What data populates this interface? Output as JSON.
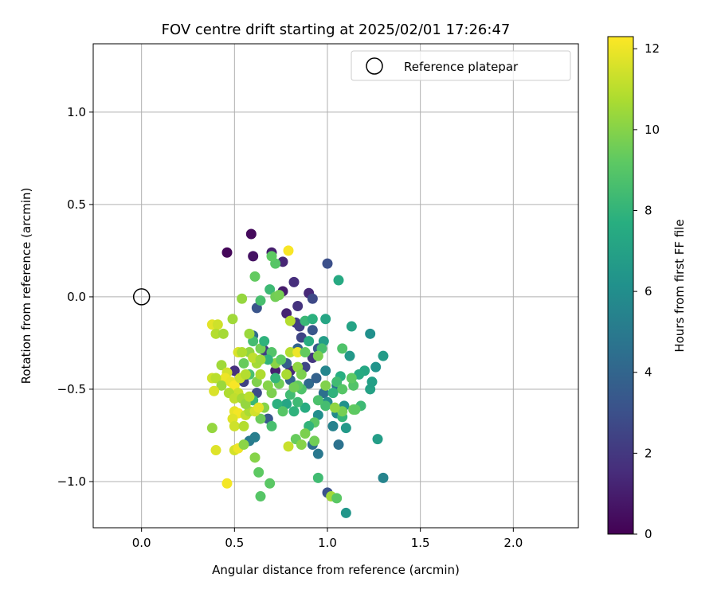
{
  "chart_data": {
    "type": "scatter",
    "title": "FOV centre drift starting at 2025/02/01 17:26:47",
    "xlabel": "Angular distance from reference (arcmin)",
    "ylabel": "Rotation from reference (arcmin)",
    "xlim": [
      -0.26,
      2.35
    ],
    "ylim": [
      -1.25,
      1.37
    ],
    "xticks": [
      0.0,
      0.5,
      1.0,
      1.5,
      2.0
    ],
    "xtick_labels": [
      "0.0",
      "0.5",
      "1.0",
      "1.5",
      "2.0"
    ],
    "yticks": [
      -1.0,
      -0.5,
      0.0,
      0.5,
      1.0
    ],
    "ytick_labels": [
      "−1.0",
      "−0.5",
      "0.0",
      "0.5",
      "1.0"
    ],
    "grid": true,
    "legend": {
      "label": "Reference platepar",
      "location": "upper right"
    },
    "reference_point": {
      "x": 0.0,
      "y": 0.0
    },
    "colorbar": {
      "label": "Hours from first FF file",
      "colormap": "viridis",
      "range": [
        0,
        12.3
      ],
      "ticks": [
        0,
        2,
        4,
        6,
        8,
        10,
        12
      ],
      "tick_labels": [
        "0",
        "2",
        "4",
        "6",
        "8",
        "10",
        "12"
      ]
    },
    "points": [
      {
        "x": 0.46,
        "y": 0.24,
        "h": 0.2
      },
      {
        "x": 0.59,
        "y": 0.34,
        "h": 0.3
      },
      {
        "x": 0.6,
        "y": 0.22,
        "h": 0.6
      },
      {
        "x": 0.7,
        "y": 0.24,
        "h": 1.0
      },
      {
        "x": 0.76,
        "y": 0.19,
        "h": 1.3
      },
      {
        "x": 0.82,
        "y": 0.08,
        "h": 1.6
      },
      {
        "x": 0.76,
        "y": 0.03,
        "h": 0.9
      },
      {
        "x": 0.84,
        "y": -0.05,
        "h": 1.8
      },
      {
        "x": 0.78,
        "y": -0.09,
        "h": 1.2
      },
      {
        "x": 0.9,
        "y": 0.02,
        "h": 1.4
      },
      {
        "x": 0.92,
        "y": -0.01,
        "h": 2.7
      },
      {
        "x": 1.0,
        "y": 0.18,
        "h": 3.0
      },
      {
        "x": 0.83,
        "y": -0.14,
        "h": 2.1
      },
      {
        "x": 0.85,
        "y": -0.16,
        "h": 2.3
      },
      {
        "x": 0.92,
        "y": -0.18,
        "h": 3.3
      },
      {
        "x": 0.86,
        "y": -0.22,
        "h": 2.5
      },
      {
        "x": 0.95,
        "y": -0.28,
        "h": 3.5
      },
      {
        "x": 0.92,
        "y": -0.33,
        "h": 1.9
      },
      {
        "x": 0.88,
        "y": -0.38,
        "h": 2.6
      },
      {
        "x": 0.8,
        "y": -0.4,
        "h": 1.5
      },
      {
        "x": 0.72,
        "y": -0.4,
        "h": 1.1
      },
      {
        "x": 0.78,
        "y": -0.36,
        "h": 3.6
      },
      {
        "x": 0.84,
        "y": -0.28,
        "h": 4.0
      },
      {
        "x": 0.8,
        "y": -0.45,
        "h": 3.9
      },
      {
        "x": 0.9,
        "y": -0.47,
        "h": 4.2
      },
      {
        "x": 0.94,
        "y": -0.44,
        "h": 3.8
      },
      {
        "x": 0.99,
        "y": -0.4,
        "h": 5.6
      },
      {
        "x": 0.98,
        "y": -0.52,
        "h": 4.5
      },
      {
        "x": 1.05,
        "y": -0.48,
        "h": 4.7
      },
      {
        "x": 0.62,
        "y": -0.06,
        "h": 3.2
      },
      {
        "x": 0.6,
        "y": -0.21,
        "h": 4.3
      },
      {
        "x": 0.66,
        "y": -0.29,
        "h": 2.2
      },
      {
        "x": 0.5,
        "y": -0.4,
        "h": 1.7
      },
      {
        "x": 0.55,
        "y": -0.46,
        "h": 2.4
      },
      {
        "x": 0.62,
        "y": -0.52,
        "h": 2.8
      },
      {
        "x": 0.68,
        "y": -0.66,
        "h": 3.4
      },
      {
        "x": 0.58,
        "y": -0.78,
        "h": 5.0
      },
      {
        "x": 0.61,
        "y": -0.76,
        "h": 5.2
      },
      {
        "x": 1.0,
        "y": -1.06,
        "h": 3.1
      },
      {
        "x": 1.06,
        "y": -0.8,
        "h": 4.6
      },
      {
        "x": 0.92,
        "y": -0.8,
        "h": 4.4
      },
      {
        "x": 0.95,
        "y": -0.85,
        "h": 4.9
      },
      {
        "x": 1.03,
        "y": -0.7,
        "h": 5.4
      },
      {
        "x": 1.05,
        "y": -0.63,
        "h": 5.8
      },
      {
        "x": 0.95,
        "y": -0.64,
        "h": 6.0
      },
      {
        "x": 1.0,
        "y": -0.57,
        "h": 5.9
      },
      {
        "x": 1.09,
        "y": -0.59,
        "h": 6.2
      },
      {
        "x": 1.1,
        "y": -0.71,
        "h": 6.6
      },
      {
        "x": 1.1,
        "y": -1.17,
        "h": 6.4
      },
      {
        "x": 1.27,
        "y": -0.77,
        "h": 6.8
      },
      {
        "x": 1.3,
        "y": -0.98,
        "h": 5.5
      },
      {
        "x": 1.3,
        "y": -0.32,
        "h": 6.7
      },
      {
        "x": 1.26,
        "y": -0.38,
        "h": 6.3
      },
      {
        "x": 1.23,
        "y": -0.5,
        "h": 7.0
      },
      {
        "x": 1.24,
        "y": -0.46,
        "h": 6.9
      },
      {
        "x": 1.2,
        "y": -0.4,
        "h": 7.3
      },
      {
        "x": 1.23,
        "y": -0.2,
        "h": 6.1
      },
      {
        "x": 1.12,
        "y": -0.32,
        "h": 6.5
      },
      {
        "x": 1.13,
        "y": -0.16,
        "h": 7.1
      },
      {
        "x": 1.06,
        "y": 0.09,
        "h": 7.4
      },
      {
        "x": 0.99,
        "y": -0.12,
        "h": 7.2
      },
      {
        "x": 0.98,
        "y": -0.24,
        "h": 6.8
      },
      {
        "x": 0.88,
        "y": -0.13,
        "h": 8.2
      },
      {
        "x": 0.9,
        "y": -0.24,
        "h": 7.6
      },
      {
        "x": 0.92,
        "y": -0.12,
        "h": 7.8
      },
      {
        "x": 0.97,
        "y": -0.28,
        "h": 8.6
      },
      {
        "x": 1.08,
        "y": -0.28,
        "h": 8.8
      },
      {
        "x": 1.07,
        "y": -0.43,
        "h": 7.7
      },
      {
        "x": 1.05,
        "y": -0.46,
        "h": 8.4
      },
      {
        "x": 1.08,
        "y": -0.5,
        "h": 9.0
      },
      {
        "x": 1.14,
        "y": -0.48,
        "h": 8.9
      },
      {
        "x": 1.17,
        "y": -0.42,
        "h": 7.5
      },
      {
        "x": 1.13,
        "y": -0.44,
        "h": 9.2
      },
      {
        "x": 1.18,
        "y": -0.59,
        "h": 8.3
      },
      {
        "x": 1.14,
        "y": -0.61,
        "h": 9.4
      },
      {
        "x": 1.08,
        "y": -0.65,
        "h": 8.1
      },
      {
        "x": 1.03,
        "y": -0.52,
        "h": 7.9
      },
      {
        "x": 0.99,
        "y": -0.59,
        "h": 8.5
      },
      {
        "x": 0.95,
        "y": -0.56,
        "h": 8.7
      },
      {
        "x": 0.93,
        "y": -0.68,
        "h": 9.1
      },
      {
        "x": 0.9,
        "y": -0.7,
        "h": 8.0
      },
      {
        "x": 0.88,
        "y": -0.6,
        "h": 7.6
      },
      {
        "x": 0.84,
        "y": -0.57,
        "h": 8.3
      },
      {
        "x": 0.82,
        "y": -0.62,
        "h": 7.9
      },
      {
        "x": 0.86,
        "y": -0.5,
        "h": 8.8
      },
      {
        "x": 0.84,
        "y": -0.48,
        "h": 9.3
      },
      {
        "x": 0.8,
        "y": -0.53,
        "h": 8.4
      },
      {
        "x": 0.78,
        "y": -0.58,
        "h": 7.2
      },
      {
        "x": 0.74,
        "y": -0.47,
        "h": 9.6
      },
      {
        "x": 0.72,
        "y": -0.44,
        "h": 8.1
      },
      {
        "x": 0.7,
        "y": -0.52,
        "h": 9.8
      },
      {
        "x": 0.73,
        "y": -0.58,
        "h": 7.8
      },
      {
        "x": 0.76,
        "y": -0.62,
        "h": 9.0
      },
      {
        "x": 0.7,
        "y": -0.7,
        "h": 8.6
      },
      {
        "x": 0.64,
        "y": -0.66,
        "h": 9.5
      },
      {
        "x": 0.66,
        "y": -0.6,
        "h": 10.0
      },
      {
        "x": 0.6,
        "y": -0.56,
        "h": 8.2
      },
      {
        "x": 0.62,
        "y": -0.46,
        "h": 9.9
      },
      {
        "x": 0.58,
        "y": -0.42,
        "h": 8.7
      },
      {
        "x": 0.55,
        "y": -0.36,
        "h": 9.4
      },
      {
        "x": 0.58,
        "y": -0.3,
        "h": 10.2
      },
      {
        "x": 0.6,
        "y": -0.24,
        "h": 8.5
      },
      {
        "x": 0.64,
        "y": -0.28,
        "h": 9.7
      },
      {
        "x": 0.66,
        "y": -0.24,
        "h": 7.9
      },
      {
        "x": 0.7,
        "y": -0.3,
        "h": 8.9
      },
      {
        "x": 0.72,
        "y": -0.36,
        "h": 10.1
      },
      {
        "x": 0.75,
        "y": -0.34,
        "h": 9.2
      },
      {
        "x": 0.68,
        "y": -0.34,
        "h": 8.0
      },
      {
        "x": 0.69,
        "y": 0.04,
        "h": 8.3
      },
      {
        "x": 0.72,
        "y": 0.0,
        "h": 9.6
      },
      {
        "x": 0.72,
        "y": 0.18,
        "h": 9.0
      },
      {
        "x": 0.61,
        "y": 0.11,
        "h": 9.3
      },
      {
        "x": 0.64,
        "y": -0.02,
        "h": 8.6
      },
      {
        "x": 0.54,
        "y": -0.01,
        "h": 10.3
      },
      {
        "x": 0.49,
        "y": -0.12,
        "h": 10.5
      },
      {
        "x": 0.58,
        "y": -0.2,
        "h": 10.4
      },
      {
        "x": 0.62,
        "y": -0.36,
        "h": 10.6
      },
      {
        "x": 0.64,
        "y": -0.42,
        "h": 10.8
      },
      {
        "x": 0.68,
        "y": -0.48,
        "h": 10.0
      },
      {
        "x": 0.78,
        "y": -0.42,
        "h": 10.7
      },
      {
        "x": 0.8,
        "y": -0.3,
        "h": 10.9
      },
      {
        "x": 0.84,
        "y": -0.38,
        "h": 10.2
      },
      {
        "x": 0.86,
        "y": -0.42,
        "h": 9.8
      },
      {
        "x": 0.8,
        "y": -0.13,
        "h": 10.9
      },
      {
        "x": 0.79,
        "y": 0.25,
        "h": 12.2
      },
      {
        "x": 0.84,
        "y": -0.3,
        "h": 12.0
      },
      {
        "x": 0.38,
        "y": -0.15,
        "h": 11.8
      },
      {
        "x": 0.41,
        "y": -0.15,
        "h": 11.4
      },
      {
        "x": 0.4,
        "y": -0.2,
        "h": 10.9
      },
      {
        "x": 0.44,
        "y": -0.2,
        "h": 10.6
      },
      {
        "x": 0.43,
        "y": -0.37,
        "h": 10.5
      },
      {
        "x": 0.46,
        "y": -0.41,
        "h": 11.5
      },
      {
        "x": 0.45,
        "y": -0.44,
        "h": 12.0
      },
      {
        "x": 0.38,
        "y": -0.44,
        "h": 11.4
      },
      {
        "x": 0.4,
        "y": -0.44,
        "h": 11.0
      },
      {
        "x": 0.43,
        "y": -0.48,
        "h": 10.4
      },
      {
        "x": 0.39,
        "y": -0.51,
        "h": 11.6
      },
      {
        "x": 0.48,
        "y": -0.46,
        "h": 11.9
      },
      {
        "x": 0.5,
        "y": -0.48,
        "h": 12.2
      },
      {
        "x": 0.52,
        "y": -0.52,
        "h": 11.3
      },
      {
        "x": 0.47,
        "y": -0.52,
        "h": 10.8
      },
      {
        "x": 0.5,
        "y": -0.55,
        "h": 11.1
      },
      {
        "x": 0.54,
        "y": -0.55,
        "h": 10.6
      },
      {
        "x": 0.5,
        "y": -0.62,
        "h": 11.9
      },
      {
        "x": 0.52,
        "y": -0.63,
        "h": 12.1
      },
      {
        "x": 0.49,
        "y": -0.66,
        "h": 11.7
      },
      {
        "x": 0.5,
        "y": -0.7,
        "h": 11.4
      },
      {
        "x": 0.55,
        "y": -0.7,
        "h": 10.9
      },
      {
        "x": 0.56,
        "y": -0.64,
        "h": 11.2
      },
      {
        "x": 0.58,
        "y": -0.62,
        "h": 10.7
      },
      {
        "x": 0.61,
        "y": -0.62,
        "h": 11.5
      },
      {
        "x": 0.63,
        "y": -0.6,
        "h": 11.8
      },
      {
        "x": 0.56,
        "y": -0.58,
        "h": 10.3
      },
      {
        "x": 0.58,
        "y": -0.54,
        "h": 11.0
      },
      {
        "x": 0.53,
        "y": -0.44,
        "h": 11.3
      },
      {
        "x": 0.56,
        "y": -0.42,
        "h": 10.9
      },
      {
        "x": 0.52,
        "y": -0.3,
        "h": 11.6
      },
      {
        "x": 0.54,
        "y": -0.3,
        "h": 10.8
      },
      {
        "x": 0.6,
        "y": -0.33,
        "h": 11.1
      },
      {
        "x": 0.64,
        "y": -0.34,
        "h": 10.5
      },
      {
        "x": 0.38,
        "y": -0.71,
        "h": 10.3
      },
      {
        "x": 0.4,
        "y": -0.83,
        "h": 11.7
      },
      {
        "x": 0.5,
        "y": -0.83,
        "h": 11.5
      },
      {
        "x": 0.52,
        "y": -0.82,
        "h": 12.0
      },
      {
        "x": 0.46,
        "y": -1.01,
        "h": 12.1
      },
      {
        "x": 0.55,
        "y": -0.8,
        "h": 10.1
      },
      {
        "x": 0.61,
        "y": -0.87,
        "h": 10.0
      },
      {
        "x": 0.63,
        "y": -0.95,
        "h": 9.2
      },
      {
        "x": 0.64,
        "y": -1.08,
        "h": 9.0
      },
      {
        "x": 0.69,
        "y": -1.01,
        "h": 9.1
      },
      {
        "x": 0.79,
        "y": -0.81,
        "h": 11.3
      },
      {
        "x": 0.83,
        "y": -0.77,
        "h": 9.4
      },
      {
        "x": 0.86,
        "y": -0.8,
        "h": 10.0
      },
      {
        "x": 0.88,
        "y": -0.74,
        "h": 9.8
      },
      {
        "x": 0.93,
        "y": -0.78,
        "h": 9.6
      },
      {
        "x": 0.95,
        "y": -0.98,
        "h": 8.4
      },
      {
        "x": 1.02,
        "y": -1.08,
        "h": 10.5
      },
      {
        "x": 1.05,
        "y": -1.09,
        "h": 9.1
      },
      {
        "x": 1.15,
        "y": -0.61,
        "h": 9.2
      },
      {
        "x": 1.08,
        "y": -0.62,
        "h": 9.7
      },
      {
        "x": 1.04,
        "y": -0.6,
        "h": 10.2
      },
      {
        "x": 0.99,
        "y": -0.48,
        "h": 9.9
      },
      {
        "x": 0.95,
        "y": -0.32,
        "h": 9.8
      },
      {
        "x": 0.88,
        "y": -0.3,
        "h": 9.3
      },
      {
        "x": 0.74,
        "y": 0.01,
        "h": 9.7
      },
      {
        "x": 0.7,
        "y": 0.22,
        "h": 9.2
      },
      {
        "x": 0.82,
        "y": -0.49,
        "h": 9.6
      }
    ]
  }
}
